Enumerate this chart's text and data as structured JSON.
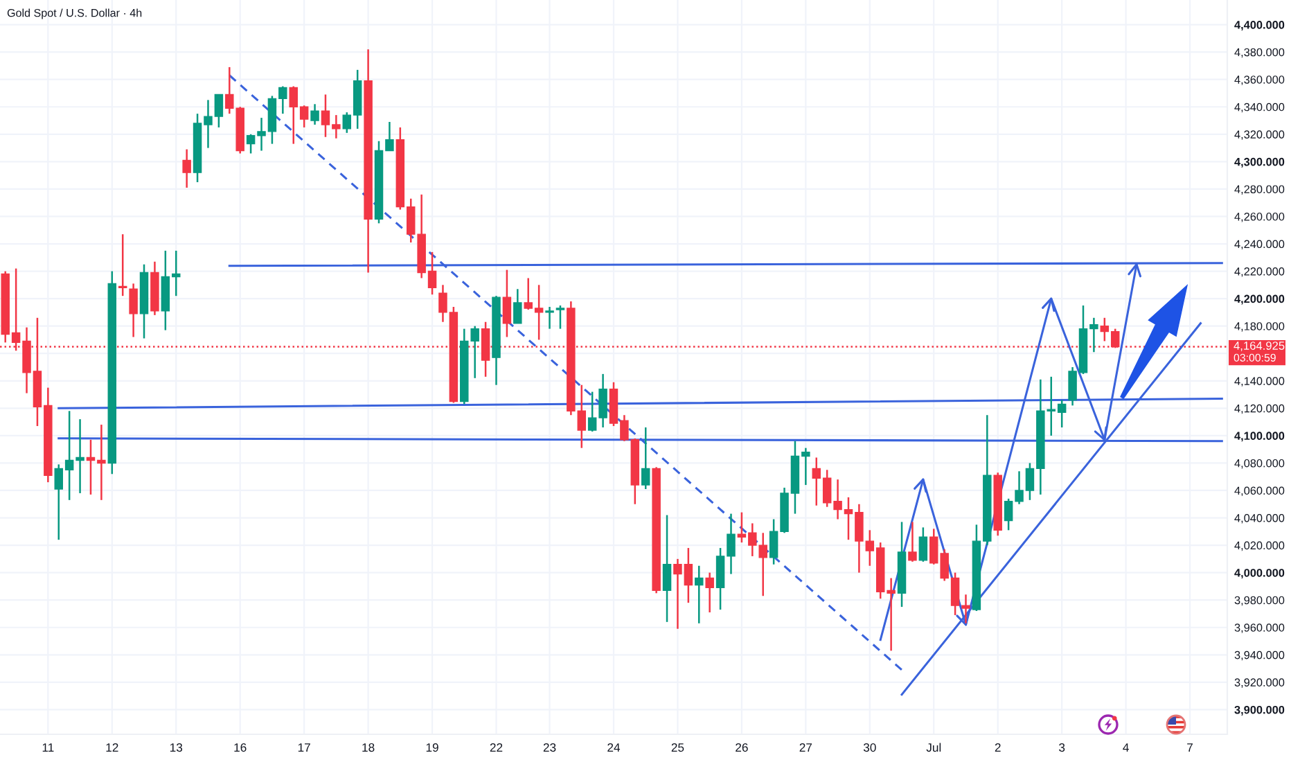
{
  "chart_data": {
    "type": "candlestick",
    "title": "Gold Spot / U.S. Dollar · 4h",
    "categories": [
      null,
      null,
      null,
      null,
      "11",
      null,
      null,
      null,
      null,
      null,
      "12",
      null,
      null,
      null,
      null,
      null,
      "13",
      null,
      null,
      null,
      null,
      null,
      "16",
      null,
      null,
      null,
      null,
      null,
      "17",
      null,
      null,
      null,
      null,
      null,
      "18",
      null,
      null,
      null,
      null,
      null,
      "19",
      null,
      null,
      null,
      null,
      null,
      "22",
      null,
      null,
      null,
      null,
      "23",
      null,
      null,
      null,
      null,
      null,
      "24",
      null,
      null,
      null,
      null,
      null,
      "25",
      null,
      null,
      null,
      null,
      null,
      "26",
      null,
      null,
      null,
      null,
      null,
      "27",
      null,
      null,
      null,
      null,
      null,
      "30",
      null,
      null,
      null,
      null,
      null,
      "Jul",
      null,
      null,
      null,
      null,
      null,
      "2",
      null,
      null,
      null,
      null,
      null,
      "3",
      null,
      null,
      null,
      null,
      null,
      "4",
      null,
      null,
      null,
      null,
      null,
      "7",
      null,
      null,
      null
    ],
    "ohlc": [
      [
        4218,
        4220,
        4168,
        4174
      ],
      [
        4175,
        4222,
        4162,
        4168
      ],
      [
        4169,
        4179,
        4131,
        4146
      ],
      [
        4147,
        4186,
        4107,
        4121
      ],
      [
        4122,
        4135,
        4066,
        4071
      ],
      [
        4061,
        4079,
        4024,
        4076
      ],
      [
        4075,
        4118,
        4053,
        4082
      ],
      [
        4082,
        4112,
        4058,
        4084
      ],
      [
        4084,
        4097,
        4057,
        4082
      ],
      [
        4082,
        4108,
        4053,
        4080
      ],
      [
        4080,
        4220,
        4072,
        4211
      ],
      [
        4209,
        4247,
        4202,
        4208
      ],
      [
        4207,
        4211,
        4172,
        4189
      ],
      [
        4189,
        4225,
        4171,
        4219
      ],
      [
        4219,
        4227,
        4188,
        4191
      ],
      [
        4191,
        4235,
        4177,
        4216
      ],
      [
        4216,
        4235,
        4202,
        4218
      ],
      [
        4301,
        4309,
        4281,
        4292
      ],
      [
        4292,
        4335,
        4285,
        4328
      ],
      [
        4327,
        4345,
        4310,
        4333
      ],
      [
        4333,
        4349,
        4325,
        4349
      ],
      [
        4349,
        4369,
        4335,
        4339
      ],
      [
        4339,
        4340,
        4306,
        4308
      ],
      [
        4313,
        4320,
        4306,
        4319
      ],
      [
        4319,
        4332,
        4308,
        4322
      ],
      [
        4322,
        4348,
        4313,
        4346
      ],
      [
        4346,
        4355,
        4335,
        4354
      ],
      [
        4354,
        4355,
        4313,
        4340
      ],
      [
        4340,
        4341,
        4325,
        4331
      ],
      [
        4330,
        4342,
        4327,
        4337
      ],
      [
        4337,
        4349,
        4318,
        4327
      ],
      [
        4327,
        4334,
        4317,
        4324
      ],
      [
        4324,
        4336,
        4321,
        4334
      ],
      [
        4334,
        4367,
        4324,
        4359
      ],
      [
        4359,
        4382,
        4219,
        4258
      ],
      [
        4258,
        4315,
        4255,
        4308
      ],
      [
        4308,
        4329,
        4308,
        4316
      ],
      [
        4316,
        4325,
        4265,
        4267
      ],
      [
        4267,
        4273,
        4241,
        4247
      ],
      [
        4247,
        4276,
        4215,
        4219
      ],
      [
        4220,
        4234,
        4203,
        4208
      ],
      [
        4204,
        4210,
        4183,
        4190
      ],
      [
        4190,
        4194,
        4124,
        4125
      ],
      [
        4125,
        4178,
        4123,
        4169
      ],
      [
        4169,
        4180,
        4142,
        4178
      ],
      [
        4178,
        4183,
        4143,
        4155
      ],
      [
        4157,
        4202,
        4137,
        4201
      ],
      [
        4201,
        4221,
        4172,
        4182
      ],
      [
        4182,
        4207,
        4182,
        4197
      ],
      [
        4197,
        4215,
        4192,
        4193
      ],
      [
        4193,
        4210,
        4170,
        4190
      ],
      [
        4190,
        4194,
        4178,
        4191
      ],
      [
        4192,
        4195,
        4178,
        4193
      ],
      [
        4193,
        4198,
        4115,
        4118
      ],
      [
        4118,
        4137,
        4091,
        4104
      ],
      [
        4104,
        4132,
        4103,
        4113
      ],
      [
        4113,
        4145,
        4106,
        4134
      ],
      [
        4134,
        4139,
        4107,
        4109
      ],
      [
        4111,
        4115,
        4096,
        4097
      ],
      [
        4097,
        4098,
        4050,
        4064
      ],
      [
        4064,
        4106,
        4061,
        4076
      ],
      [
        4076,
        4077,
        3985,
        3987
      ],
      [
        3987,
        4042,
        3964,
        4006
      ],
      [
        4006,
        4010,
        3959,
        3999
      ],
      [
        4006,
        4018,
        3978,
        3991
      ],
      [
        3991,
        4005,
        3963,
        3996
      ],
      [
        3996,
        4000,
        3971,
        3989
      ],
      [
        3989,
        4018,
        3973,
        4012
      ],
      [
        4012,
        4043,
        3999,
        4028
      ],
      [
        4028,
        4044,
        4022,
        4026
      ],
      [
        4029,
        4036,
        4012,
        4020
      ],
      [
        4020,
        4029,
        3983,
        4011
      ],
      [
        4011,
        4039,
        4006,
        4030
      ],
      [
        4030,
        4062,
        4029,
        4058
      ],
      [
        4058,
        4096,
        4043,
        4085
      ],
      [
        4085,
        4091,
        4064,
        4088
      ],
      [
        4076,
        4084,
        4049,
        4069
      ],
      [
        4069,
        4075,
        4048,
        4051
      ],
      [
        4052,
        4068,
        4039,
        4046
      ],
      [
        4046,
        4055,
        4024,
        4043
      ],
      [
        4044,
        4050,
        4000,
        4023
      ],
      [
        4023,
        4031,
        4005,
        4016
      ],
      [
        4018,
        4022,
        3981,
        3986
      ],
      [
        3987,
        3996,
        3943,
        3985
      ],
      [
        3985,
        4037,
        3975,
        4015
      ],
      [
        4015,
        4037,
        4008,
        4009
      ],
      [
        4009,
        4033,
        4008,
        4026
      ],
      [
        4026,
        4032,
        4006,
        4007
      ],
      [
        4014,
        4017,
        3994,
        3996
      ],
      [
        3996,
        4000,
        3969,
        3976
      ],
      [
        3976,
        3984,
        3963,
        3974
      ],
      [
        3973,
        4035,
        3972,
        4023
      ],
      [
        4023,
        4115,
        4020,
        4071
      ],
      [
        4071,
        4073,
        4027,
        4031
      ],
      [
        4038,
        4054,
        4031,
        4052
      ],
      [
        4052,
        4074,
        4050,
        4060
      ],
      [
        4060,
        4080,
        4053,
        4076
      ],
      [
        4076,
        4141,
        4057,
        4118
      ],
      [
        4118,
        4143,
        4100,
        4119
      ],
      [
        4117,
        4126,
        4106,
        4123
      ],
      [
        4126,
        4150,
        4122,
        4147
      ],
      [
        4146,
        4195,
        4145,
        4178
      ],
      [
        4178,
        4186,
        4161,
        4181
      ],
      [
        4180,
        4186,
        4169,
        4176
      ],
      [
        4176,
        4178,
        4164,
        4164.925
      ],
      null,
      null,
      null,
      null,
      null,
      null,
      null,
      null,
      null,
      null
    ],
    "colors": [
      "#f23645",
      "#f23645",
      "#f23645",
      "#f23645",
      "#f23645",
      "#089981",
      "#089981",
      "#089981",
      "#f23645",
      "#f23645",
      "#089981",
      "#f23645",
      "#f23645",
      "#089981",
      "#f23645",
      "#089981",
      "#089981",
      "#f23645",
      "#089981",
      "#089981",
      "#089981",
      "#f23645",
      "#f23645",
      "#089981",
      "#089981",
      "#089981",
      "#089981",
      "#f23645",
      "#f23645",
      "#089981",
      "#f23645",
      "#f23645",
      "#089981",
      "#089981",
      "#f23645",
      "#089981",
      "#089981",
      "#f23645",
      "#f23645",
      "#f23645",
      "#f23645",
      "#f23645",
      "#f23645",
      "#089981",
      "#089981",
      "#f23645",
      "#089981",
      "#f23645",
      "#089981",
      "#f23645",
      "#f23645",
      "#089981",
      "#089981",
      "#f23645",
      "#f23645",
      "#089981",
      "#089981",
      "#f23645",
      "#f23645",
      "#f23645",
      "#089981",
      "#f23645",
      "#089981",
      "#f23645",
      "#f23645",
      "#089981",
      "#f23645",
      "#089981",
      "#089981",
      "#f23645",
      "#f23645",
      "#f23645",
      "#089981",
      "#089981",
      "#089981",
      "#089981",
      "#f23645",
      "#f23645",
      "#f23645",
      "#f23645",
      "#f23645",
      "#f23645",
      "#f23645",
      "#f23645",
      "#089981",
      "#f23645",
      "#089981",
      "#f23645",
      "#f23645",
      "#f23645",
      "#f23645",
      "#089981",
      "#089981",
      "#f23645",
      "#089981",
      "#089981",
      "#089981",
      "#089981",
      "#089981",
      "#089981",
      "#089981",
      "#089981",
      "#089981",
      "#f23645",
      "#f23645",
      null,
      null,
      null,
      null,
      null,
      null,
      null,
      null,
      null,
      null
    ],
    "series": [
      {
        "type": "line",
        "color": "#3a63dc",
        "line_style": "dashed",
        "values": [
          null,
          null,
          null,
          null,
          null,
          null,
          null,
          null,
          null,
          null,
          null,
          null,
          null,
          null,
          null,
          null,
          null,
          null,
          null,
          null,
          null,
          4363,
          null,
          null,
          null,
          null,
          null,
          null,
          null,
          null,
          null,
          null,
          null,
          null,
          null,
          null,
          null,
          null,
          null,
          null,
          null,
          null,
          null,
          null,
          null,
          null,
          null,
          null,
          null,
          null,
          null,
          null,
          null,
          null,
          null,
          null,
          null,
          null,
          null,
          null,
          null,
          null,
          null,
          null,
          null,
          null,
          null,
          null,
          null,
          null,
          null,
          null,
          null,
          null,
          null,
          null,
          null,
          null,
          null,
          null,
          null,
          null,
          null,
          null,
          3929,
          null,
          null,
          null,
          null,
          null,
          null,
          null,
          null,
          null,
          null,
          null,
          null,
          null,
          null,
          null,
          null,
          null,
          null,
          null,
          null,
          null,
          null,
          null,
          null,
          null,
          null,
          null,
          null,
          null,
          null
        ]
      },
      {
        "type": "line",
        "color": "#3a63dc",
        "values": [
          null,
          null,
          null,
          null,
          null,
          null,
          null,
          null,
          null,
          null,
          null,
          null,
          null,
          null,
          null,
          null,
          null,
          null,
          null,
          null,
          null,
          4224,
          null,
          null,
          null,
          null,
          null,
          null,
          null,
          null,
          null,
          null,
          null,
          null,
          null,
          null,
          null,
          null,
          null,
          null,
          null,
          null,
          null,
          null,
          null,
          null,
          null,
          null,
          null,
          null,
          null,
          null,
          null,
          null,
          null,
          null,
          null,
          null,
          null,
          null,
          null,
          null,
          null,
          null,
          null,
          null,
          null,
          null,
          null,
          null,
          null,
          null,
          null,
          null,
          null,
          null,
          null,
          null,
          null,
          null,
          null,
          null,
          null,
          null,
          null,
          null,
          null,
          null,
          null,
          null,
          null,
          null,
          null,
          null,
          null,
          null,
          null,
          null,
          null,
          null,
          null,
          null,
          null,
          null,
          null,
          null,
          null,
          null,
          null,
          null,
          null,
          null,
          null,
          null,
          4226
        ]
      },
      {
        "type": "line",
        "color": "#3a63dc",
        "values": [
          null,
          null,
          null,
          null,
          null,
          4120,
          null,
          null,
          null,
          null,
          null,
          null,
          null,
          null,
          null,
          null,
          null,
          null,
          null,
          null,
          null,
          null,
          null,
          null,
          null,
          null,
          null,
          null,
          null,
          null,
          null,
          null,
          null,
          null,
          null,
          null,
          null,
          null,
          null,
          null,
          null,
          null,
          null,
          null,
          null,
          null,
          null,
          null,
          null,
          null,
          null,
          null,
          null,
          null,
          null,
          null,
          null,
          null,
          null,
          null,
          null,
          null,
          null,
          null,
          null,
          null,
          null,
          null,
          null,
          null,
          null,
          null,
          null,
          null,
          null,
          null,
          null,
          null,
          null,
          null,
          null,
          null,
          null,
          null,
          null,
          null,
          null,
          null,
          null,
          null,
          null,
          null,
          null,
          null,
          null,
          null,
          null,
          null,
          null,
          null,
          null,
          null,
          null,
          null,
          null,
          null,
          null,
          null,
          null,
          null,
          null,
          null,
          null,
          null,
          4127
        ]
      },
      {
        "type": "line",
        "color": "#3a63dc",
        "values": [
          null,
          null,
          null,
          null,
          null,
          4098,
          null,
          null,
          null,
          null,
          null,
          null,
          null,
          null,
          null,
          null,
          null,
          null,
          null,
          null,
          null,
          null,
          null,
          null,
          null,
          null,
          null,
          null,
          null,
          null,
          null,
          null,
          null,
          null,
          null,
          null,
          null,
          null,
          null,
          null,
          null,
          null,
          null,
          null,
          null,
          null,
          null,
          null,
          null,
          null,
          null,
          null,
          null,
          null,
          null,
          null,
          null,
          null,
          null,
          null,
          null,
          null,
          null,
          null,
          null,
          null,
          null,
          null,
          null,
          null,
          null,
          null,
          null,
          null,
          null,
          null,
          null,
          null,
          null,
          null,
          null,
          null,
          null,
          null,
          null,
          null,
          null,
          null,
          null,
          null,
          null,
          null,
          null,
          null,
          null,
          null,
          null,
          null,
          null,
          null,
          null,
          null,
          null,
          null,
          null,
          null,
          null,
          null,
          null,
          null,
          null,
          null,
          null,
          null,
          4096
        ]
      },
      {
        "type": "line",
        "color": "#3a63dc",
        "values": [
          null,
          null,
          null,
          null,
          null,
          null,
          null,
          null,
          null,
          null,
          null,
          null,
          null,
          null,
          null,
          null,
          null,
          null,
          null,
          null,
          null,
          null,
          null,
          null,
          null,
          null,
          null,
          null,
          null,
          null,
          null,
          null,
          null,
          null,
          null,
          null,
          null,
          null,
          null,
          null,
          null,
          null,
          null,
          null,
          null,
          null,
          null,
          null,
          null,
          null,
          null,
          null,
          null,
          null,
          null,
          null,
          null,
          null,
          null,
          null,
          null,
          null,
          null,
          null,
          null,
          null,
          null,
          null,
          null,
          null,
          null,
          null,
          null,
          null,
          null,
          null,
          null,
          null,
          null,
          null,
          null,
          null,
          3951,
          null,
          null,
          null,
          4068,
          null,
          null,
          null,
          3962,
          null,
          null,
          null,
          null,
          null,
          null,
          null,
          4200,
          null,
          null,
          null,
          null,
          4097,
          null,
          null,
          4225,
          null,
          null,
          null,
          null,
          null,
          null,
          null,
          null
        ]
      },
      {
        "type": "line",
        "color": "#3a63dc",
        "values": [
          null,
          null,
          null,
          null,
          null,
          null,
          null,
          null,
          null,
          null,
          null,
          null,
          null,
          null,
          null,
          null,
          null,
          null,
          null,
          null,
          null,
          null,
          null,
          null,
          null,
          null,
          null,
          null,
          null,
          null,
          null,
          null,
          null,
          null,
          null,
          null,
          null,
          null,
          null,
          null,
          null,
          null,
          null,
          null,
          null,
          null,
          null,
          null,
          null,
          null,
          null,
          null,
          null,
          null,
          null,
          null,
          null,
          null,
          null,
          null,
          null,
          null,
          null,
          null,
          null,
          null,
          null,
          null,
          null,
          null,
          null,
          null,
          null,
          null,
          null,
          null,
          null,
          null,
          null,
          null,
          null,
          null,
          null,
          null,
          3911,
          null,
          null,
          null,
          null,
          null,
          null,
          null,
          null,
          null,
          null,
          null,
          null,
          null,
          null,
          null,
          null,
          null,
          null,
          null,
          null,
          null,
          null,
          null,
          null,
          null,
          null,
          null,
          4182,
          null,
          null
        ]
      }
    ],
    "ref_lines": [
      {
        "axis": "y",
        "value": 4164.925,
        "label": "4,164.925",
        "color": "#f23645",
        "line_style": "dotted"
      }
    ],
    "annotations": [
      "03:00:59"
    ],
    "ylim": [
      3882,
      4418
    ],
    "yticks": [
      {
        "value": 3900,
        "label": "3,900.000"
      },
      {
        "value": 3920,
        "label": "3,920.000"
      },
      {
        "value": 3940,
        "label": "3,940.000"
      },
      {
        "value": 3960,
        "label": "3,960.000"
      },
      {
        "value": 3980,
        "label": "3,980.000"
      },
      {
        "value": 4000,
        "label": "4,000.000"
      },
      {
        "value": 4020,
        "label": "4,020.000"
      },
      {
        "value": 4040,
        "label": "4,040.000"
      },
      {
        "value": 4060,
        "label": "4,060.000"
      },
      {
        "value": 4080,
        "label": "4,080.000"
      },
      {
        "value": 4100,
        "label": "4,100.000"
      },
      {
        "value": 4120,
        "label": "4,120.000"
      },
      {
        "value": 4140,
        "label": "4,140.000"
      },
      {
        "value": 4160,
        "label": null
      },
      {
        "value": 4180,
        "label": "4,180.000"
      },
      {
        "value": 4200,
        "label": "4,200.000"
      },
      {
        "value": 4220,
        "label": "4,220.000"
      },
      {
        "value": 4240,
        "label": "4,240.000"
      },
      {
        "value": 4260,
        "label": "4,260.000"
      },
      {
        "value": 4280,
        "label": "4,280.000"
      },
      {
        "value": 4300,
        "label": "4,300.000"
      },
      {
        "value": 4320,
        "label": "4,320.000"
      },
      {
        "value": 4340,
        "label": "4,340.000"
      },
      {
        "value": 4360,
        "label": "4,360.000"
      },
      {
        "value": 4380,
        "label": "4,380.000"
      },
      {
        "value": 4400,
        "label": "4,400.000"
      }
    ],
    "grid": true
  }
}
